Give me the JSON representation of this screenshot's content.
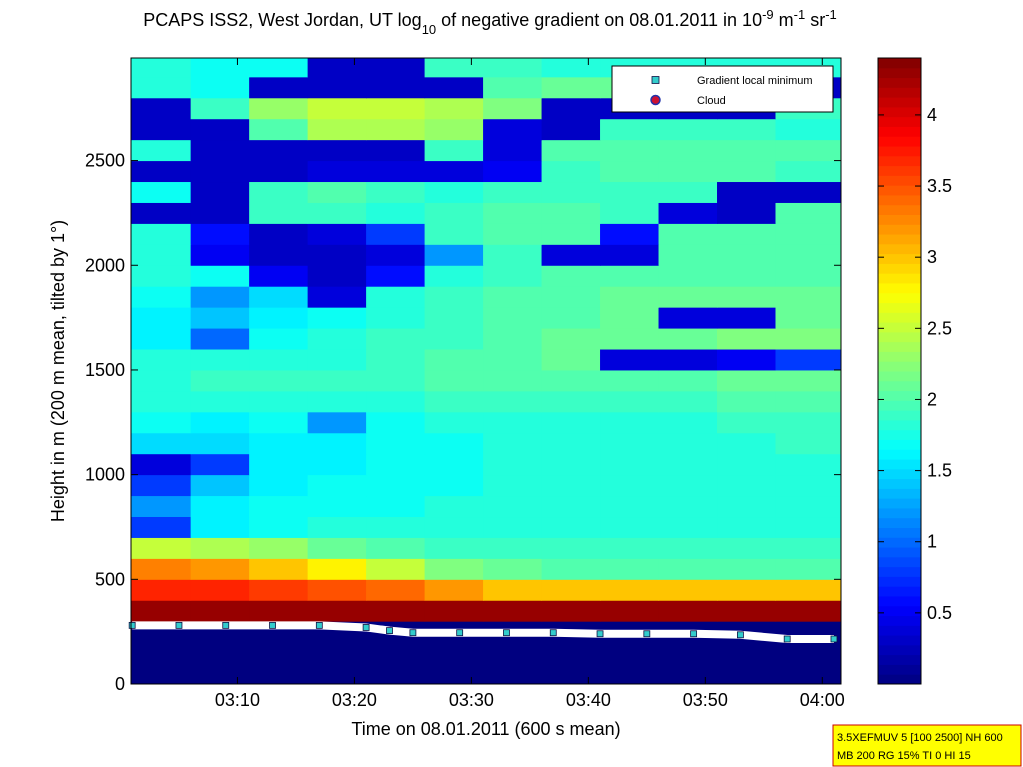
{
  "chart_data": {
    "type": "heatmap",
    "title_parts": [
      {
        "text": "PCAPS ISS2, West Jordan, UT log"
      },
      {
        "text": "10",
        "shift": "sub"
      },
      {
        "text": " of negative gradient on 08.01.2011 in 10"
      },
      {
        "text": "-9",
        "shift": "super"
      },
      {
        "text": " m"
      },
      {
        "text": "-1",
        "shift": "super"
      },
      {
        "text": " sr"
      },
      {
        "text": "-1",
        "shift": "super"
      }
    ],
    "xlabel": "Time on 08.01.2011 (600 s mean)",
    "ylabel": "Height in m (200 m mean, tilted by 1°)",
    "xlim": [
      180.9,
      241.6
    ],
    "xticks": [
      {
        "value": 190,
        "label": "03:10"
      },
      {
        "value": 200,
        "label": "03:20"
      },
      {
        "value": 210,
        "label": "03:30"
      },
      {
        "value": 220,
        "label": "03:40"
      },
      {
        "value": 230,
        "label": "03:50"
      },
      {
        "value": 240,
        "label": "04:00"
      }
    ],
    "ylim": [
      0,
      2990
    ],
    "yticks": [
      0,
      500,
      1000,
      1500,
      2000,
      2500
    ],
    "clim": [
      0,
      4.4
    ],
    "cticks": [
      0.5,
      1,
      1.5,
      2,
      2.5,
      3,
      3.5,
      4
    ],
    "colormap": "jet",
    "x_edges": [
      180.9,
      186,
      191,
      196,
      201,
      206,
      211,
      216,
      221,
      226,
      231,
      236,
      241.6
    ],
    "y_edges": [
      0,
      100,
      200,
      300,
      400,
      500,
      600,
      700,
      800,
      900,
      1000,
      1100,
      1200,
      1300,
      1400,
      1500,
      1600,
      1700,
      1800,
      1900,
      2000,
      2100,
      2200,
      2300,
      2400,
      2500,
      2600,
      2700,
      2800,
      2900,
      2990
    ],
    "z": [
      [
        0,
        0,
        0,
        0,
        0,
        0,
        0,
        0,
        0,
        0,
        0,
        0
      ],
      [
        0,
        0,
        0,
        0,
        0,
        0,
        0,
        0,
        0,
        0,
        0,
        0
      ],
      [
        0,
        0,
        0,
        0,
        0,
        0,
        0,
        0,
        0,
        0,
        0,
        0
      ],
      [
        4.3,
        4.3,
        4.3,
        4.3,
        4.3,
        4.3,
        4.3,
        4.3,
        4.3,
        4.3,
        4.3,
        4.3
      ],
      [
        3.7,
        3.7,
        3.6,
        3.5,
        3.4,
        3.2,
        3.0,
        3.0,
        3.0,
        3.0,
        3.0,
        3.0
      ],
      [
        3.3,
        3.2,
        3.0,
        2.8,
        2.5,
        2.2,
        2.1,
        2.0,
        2.0,
        2.0,
        2.0,
        2.0
      ],
      [
        2.5,
        2.4,
        2.3,
        2.1,
        2.0,
        1.9,
        1.9,
        1.9,
        1.9,
        1.9,
        1.9,
        1.9
      ],
      [
        0.8,
        1.6,
        1.7,
        1.8,
        1.8,
        1.8,
        1.8,
        1.8,
        1.8,
        1.8,
        1.8,
        1.8
      ],
      [
        1.2,
        1.6,
        1.7,
        1.7,
        1.7,
        1.8,
        1.8,
        1.8,
        1.8,
        1.8,
        1.8,
        1.8
      ],
      [
        0.8,
        1.4,
        1.6,
        1.7,
        1.7,
        1.7,
        1.8,
        1.8,
        1.8,
        1.8,
        1.8,
        1.8
      ],
      [
        0.4,
        0.8,
        1.6,
        1.6,
        1.7,
        1.7,
        1.8,
        1.8,
        1.8,
        1.8,
        1.8,
        1.8
      ],
      [
        1.5,
        1.5,
        1.6,
        1.6,
        1.7,
        1.7,
        1.8,
        1.8,
        1.8,
        1.8,
        1.8,
        1.9
      ],
      [
        1.7,
        1.6,
        1.7,
        1.2,
        1.7,
        1.8,
        1.8,
        1.8,
        1.8,
        1.8,
        1.9,
        1.9
      ],
      [
        1.8,
        1.8,
        1.8,
        1.8,
        1.8,
        1.9,
        1.9,
        1.9,
        1.9,
        1.9,
        2.0,
        2.0
      ],
      [
        1.8,
        1.9,
        1.9,
        1.9,
        1.9,
        2.0,
        2.0,
        2.0,
        2.0,
        2.0,
        2.1,
        2.1
      ],
      [
        1.8,
        1.8,
        1.8,
        1.8,
        1.9,
        2.0,
        2.0,
        2.1,
        0.4,
        0.4,
        0.5,
        0.8
      ],
      [
        1.6,
        1.0,
        1.7,
        1.8,
        1.9,
        1.9,
        2.0,
        2.1,
        2.1,
        2.1,
        2.2,
        2.2
      ],
      [
        1.6,
        1.4,
        1.6,
        1.7,
        1.8,
        1.9,
        2.0,
        2.0,
        2.1,
        0.4,
        0.4,
        2.1
      ],
      [
        1.7,
        1.2,
        1.5,
        0.4,
        1.8,
        1.9,
        2.0,
        2.0,
        2.1,
        2.1,
        2.1,
        2.1
      ],
      [
        1.8,
        1.7,
        0.5,
        0.3,
        0.6,
        1.8,
        1.9,
        2.0,
        2.0,
        2.0,
        2.0,
        2.0
      ],
      [
        1.8,
        0.5,
        0.3,
        0.3,
        0.4,
        1.2,
        1.9,
        0.4,
        0.4,
        2.0,
        2.0,
        2.0
      ],
      [
        1.8,
        0.6,
        0.3,
        0.4,
        0.8,
        1.9,
        2.0,
        2.0,
        0.6,
        2.0,
        2.0,
        2.0
      ],
      [
        0.3,
        0.3,
        1.9,
        1.9,
        1.8,
        1.9,
        2.0,
        2.0,
        1.9,
        0.4,
        0.3,
        2.0
      ],
      [
        1.7,
        0.3,
        1.9,
        2.0,
        1.9,
        1.8,
        1.9,
        1.9,
        1.9,
        1.9,
        0.3,
        0.3
      ],
      [
        0.3,
        0.3,
        0.3,
        0.4,
        0.4,
        0.4,
        0.5,
        1.9,
        2.0,
        2.0,
        2.0,
        1.9
      ],
      [
        1.8,
        0.3,
        0.3,
        0.3,
        0.3,
        1.9,
        0.4,
        2.0,
        2.0,
        2.0,
        2.0,
        2.0
      ],
      [
        0.3,
        0.3,
        2.0,
        2.4,
        2.4,
        2.3,
        0.4,
        0.3,
        1.9,
        1.9,
        1.9,
        1.8
      ],
      [
        0.3,
        1.9,
        2.3,
        2.5,
        2.5,
        2.4,
        2.2,
        0.3,
        0.3,
        0.3,
        0.3,
        1.9
      ],
      [
        1.8,
        1.7,
        0.3,
        0.3,
        0.3,
        0.3,
        2.0,
        2.1,
        2.1,
        1.9,
        0.3,
        0.3
      ],
      [
        1.8,
        1.7,
        1.7,
        0.3,
        0.3,
        1.9,
        1.9,
        1.8,
        1.8,
        1.8,
        1.8,
        1.8
      ]
    ],
    "series": [
      {
        "name": "Gradient local minimum",
        "color": "#33cccc",
        "x": [
          181,
          185,
          189,
          193,
          197,
          201,
          203,
          205,
          209,
          213,
          217,
          221,
          225,
          229,
          233,
          237,
          241
        ],
        "values": [
          280,
          280,
          280,
          280,
          280,
          270,
          255,
          245,
          245,
          245,
          245,
          240,
          240,
          240,
          235,
          215,
          215
        ]
      },
      {
        "name": "Cloud",
        "color": "#cc1133",
        "x": [],
        "values": []
      }
    ],
    "legend": "upper right",
    "annotations": [
      "3.5XEFMUV 5 [100 2500] NH 600",
      "MB 200 RG 15% TI 0 HI 15"
    ]
  }
}
